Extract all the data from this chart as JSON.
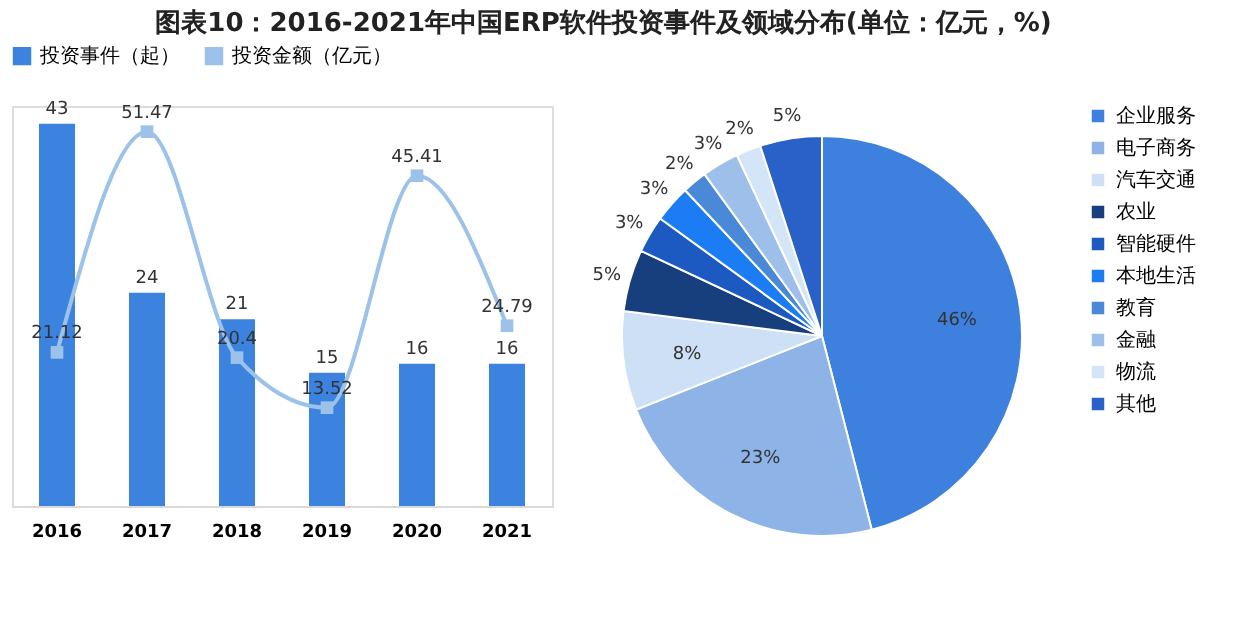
{
  "chart_data": [
    {
      "type": "bar",
      "title": "图表10：2016-2021年中国ERP软件投资事件及领域分布(单位：亿元，%)",
      "categories": [
        "2016",
        "2017",
        "2018",
        "2019",
        "2020",
        "2021"
      ],
      "series": [
        {
          "name": "投资事件（起）",
          "color": "#3c83df",
          "values": [
            43,
            24,
            21,
            15,
            16,
            16
          ]
        },
        {
          "name": "投资金额（亿元）",
          "type": "line",
          "axis": "y2",
          "color": "#9cc2ea",
          "marker": "square",
          "values": [
            21.12,
            51.47,
            20.4,
            13.52,
            45.41,
            24.79
          ]
        }
      ],
      "data_labels": true,
      "legend": "top",
      "tick_labels": "x",
      "grid": false
    },
    {
      "type": "pie",
      "categories": [
        "企业服务",
        "电子商务",
        "汽车交通",
        "农业",
        "智能硬件",
        "本地生活",
        "教育",
        "金融",
        "物流",
        "其他"
      ],
      "values": [
        46,
        23,
        8,
        5,
        3,
        3,
        2,
        3,
        2,
        5
      ],
      "value_labels": [
        "46%",
        "23%",
        "8%",
        "5%",
        "3%",
        "3%",
        "2%",
        "3%",
        "2%",
        "5%"
      ],
      "colors": [
        "#3d80dd",
        "#8db3e7",
        "#cde0f6",
        "#173f7d",
        "#1c5ac2",
        "#1b7cf3",
        "#4a88d8",
        "#9dbfe9",
        "#d5e5f8",
        "#2961c8"
      ],
      "legend": "right"
    }
  ]
}
